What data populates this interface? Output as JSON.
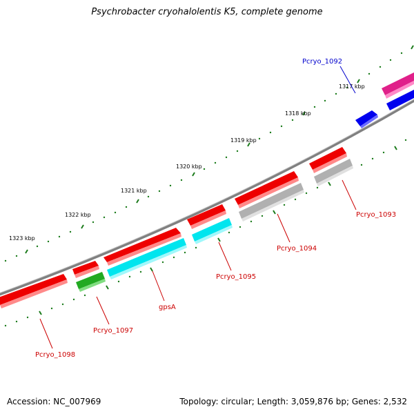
{
  "title": "Psychrobacter cryohalolentis K5, complete genome",
  "footer": {
    "accession": "Accession: NC_007969",
    "summary": "Topology: circular; Length: 3,059,876 bp; Genes: 2,532"
  },
  "colors": {
    "backbone": "#808080",
    "tick_mark": "#1a7a1a",
    "label_red": "#cc0000",
    "label_blue": "#0000cc",
    "red": "#ee0000",
    "green": "#22aa22",
    "cyan": "#00e5ee",
    "gray": "#b0b0b0",
    "blue": "#0000ee",
    "magenta": "#e0208a"
  },
  "ticks": [
    {
      "label": "1323 kbp"
    },
    {
      "label": "1322 kbp"
    },
    {
      "label": "1321 kbp"
    },
    {
      "label": "1320 kbp"
    },
    {
      "label": "1319 kbp"
    },
    {
      "label": "1318 kbp"
    },
    {
      "label": "1317 kbp"
    }
  ],
  "genes": [
    {
      "name": "Pcryo_1098",
      "color": "red"
    },
    {
      "name": "Pcryo_1097",
      "color": "red"
    },
    {
      "name": "gpsA",
      "color": "red"
    },
    {
      "name": "Pcryo_1095",
      "color": "red"
    },
    {
      "name": "Pcryo_1094",
      "color": "red"
    },
    {
      "name": "Pcryo_1093",
      "color": "red"
    },
    {
      "name": "Pcryo_1092",
      "color": "blue"
    }
  ]
}
